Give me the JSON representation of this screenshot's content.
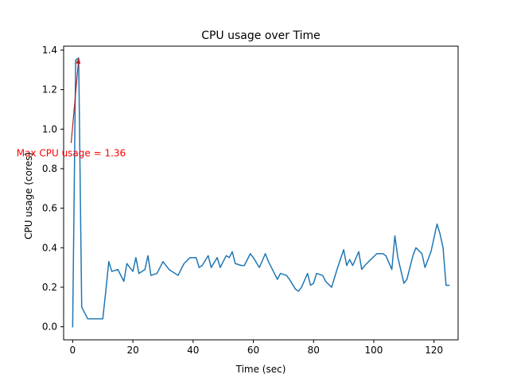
{
  "chart_data": {
    "type": "line",
    "title": "CPU usage over Time",
    "xlabel": "Time (sec)",
    "ylabel": "CPU usage (cores)",
    "xlim": [
      -3.0,
      128.0
    ],
    "ylim": [
      -0.066,
      1.42
    ],
    "xticks": [
      0,
      20,
      40,
      60,
      80,
      100,
      120
    ],
    "yticks": [
      0.0,
      0.2,
      0.4,
      0.6,
      0.8,
      1.0,
      1.2,
      1.4
    ],
    "xtick_labels": [
      "0",
      "20",
      "40",
      "60",
      "80",
      "100",
      "120"
    ],
    "ytick_labels": [
      "0.0",
      "0.2",
      "0.4",
      "0.6",
      "0.8",
      "1.0",
      "1.2",
      "1.4"
    ],
    "grid": false,
    "series": [
      {
        "color": "#1f77b4",
        "x": [
          0,
          1,
          2,
          3,
          5,
          7,
          8,
          10,
          11,
          12,
          13,
          15,
          17,
          18,
          20,
          21,
          22,
          24,
          25,
          26,
          28,
          30,
          32,
          33,
          35,
          37,
          39,
          41,
          42,
          43,
          45,
          46,
          48,
          49,
          51,
          52,
          53,
          54,
          56,
          57,
          59,
          60,
          62,
          64,
          65,
          67,
          68,
          69,
          71,
          72,
          74,
          75,
          76,
          78,
          79,
          80,
          81,
          83,
          84,
          86,
          87,
          88,
          90,
          91,
          92,
          93,
          95,
          96,
          97,
          99,
          101,
          103,
          104,
          106,
          107,
          108,
          110,
          111,
          113,
          114,
          116,
          117,
          119,
          121,
          122,
          123,
          124,
          125
        ],
        "y": [
          0.0,
          1.35,
          1.36,
          0.1,
          0.04,
          0.04,
          0.04,
          0.04,
          0.18,
          0.33,
          0.28,
          0.29,
          0.23,
          0.32,
          0.28,
          0.35,
          0.27,
          0.29,
          0.36,
          0.26,
          0.27,
          0.33,
          0.29,
          0.28,
          0.26,
          0.32,
          0.35,
          0.35,
          0.3,
          0.31,
          0.36,
          0.3,
          0.35,
          0.3,
          0.36,
          0.35,
          0.38,
          0.32,
          0.31,
          0.31,
          0.37,
          0.35,
          0.3,
          0.37,
          0.33,
          0.27,
          0.24,
          0.27,
          0.26,
          0.24,
          0.19,
          0.18,
          0.2,
          0.27,
          0.21,
          0.22,
          0.27,
          0.26,
          0.23,
          0.2,
          0.25,
          0.3,
          0.39,
          0.31,
          0.34,
          0.31,
          0.38,
          0.29,
          0.31,
          0.34,
          0.37,
          0.37,
          0.36,
          0.29,
          0.46,
          0.35,
          0.22,
          0.24,
          0.36,
          0.4,
          0.37,
          0.3,
          0.38,
          0.52,
          0.47,
          0.4,
          0.21,
          0.21
        ]
      }
    ],
    "annotation": {
      "text": "Max CPU usage = 1.36",
      "text_x": -0.5,
      "text_y": 0.93,
      "point_x": 2,
      "point_y": 1.36,
      "color": "#ff0000",
      "arrow_color": "#b22222"
    }
  }
}
